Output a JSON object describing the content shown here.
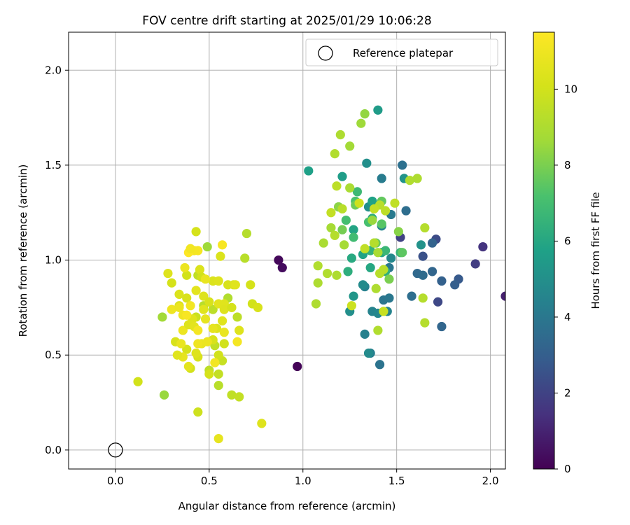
{
  "chart_data": {
    "type": "scatter",
    "title": "FOV centre drift starting at 2025/01/29 10:06:28",
    "xlabel": "Angular distance from reference (arcmin)",
    "ylabel": "Rotation from reference (arcmin)",
    "xlim": [
      -0.25,
      2.08
    ],
    "ylim": [
      -0.1,
      2.2
    ],
    "xticks": [
      0.0,
      0.5,
      1.0,
      1.5,
      2.0
    ],
    "xtick_labels": [
      "0.0",
      "0.5",
      "1.0",
      "1.5",
      "2.0"
    ],
    "yticks": [
      0.0,
      0.5,
      1.0,
      1.5,
      2.0
    ],
    "ytick_labels": [
      "0.0",
      "0.5",
      "1.0",
      "1.5",
      "2.0"
    ],
    "grid": true,
    "colormap": "viridis",
    "colorbar": {
      "label": "Hours from first FF file",
      "range": [
        0,
        11.5
      ],
      "ticks": [
        0,
        2,
        4,
        6,
        8,
        10
      ],
      "tick_labels": [
        "0",
        "2",
        "4",
        "6",
        "8",
        "10"
      ]
    },
    "legend": {
      "position": "top-right",
      "entries": [
        "Reference platepar"
      ]
    },
    "reference_point": {
      "x": 0.0,
      "y": 0.0
    },
    "points": [
      [
        0.97,
        0.44,
        0.1
      ],
      [
        0.87,
        1.0,
        0.2
      ],
      [
        0.89,
        0.96,
        0.3
      ],
      [
        2.08,
        0.81,
        0.9
      ],
      [
        1.96,
        1.07,
        1.5
      ],
      [
        1.92,
        0.98,
        1.8
      ],
      [
        1.52,
        1.12,
        2.0
      ],
      [
        1.72,
        0.78,
        2.2
      ],
      [
        1.71,
        1.11,
        2.3
      ],
      [
        1.64,
        1.02,
        2.5
      ],
      [
        1.83,
        0.9,
        2.8
      ],
      [
        1.81,
        0.87,
        3.0
      ],
      [
        1.74,
        0.89,
        3.1
      ],
      [
        1.69,
        1.09,
        3.2
      ],
      [
        1.69,
        0.94,
        3.3
      ],
      [
        1.74,
        0.65,
        3.3
      ],
      [
        1.61,
        0.93,
        3.4
      ],
      [
        1.64,
        0.92,
        3.5
      ],
      [
        1.58,
        0.81,
        3.6
      ],
      [
        1.55,
        1.26,
        3.6
      ],
      [
        1.53,
        1.5,
        3.7
      ],
      [
        1.41,
        0.45,
        3.8
      ],
      [
        1.43,
        0.79,
        3.9
      ],
      [
        1.46,
        0.8,
        4.0
      ],
      [
        1.46,
        0.96,
        4.0
      ],
      [
        1.47,
        1.24,
        4.1
      ],
      [
        1.42,
        1.43,
        4.2
      ],
      [
        1.36,
        0.51,
        4.3
      ],
      [
        1.33,
        0.61,
        4.4
      ],
      [
        1.33,
        0.86,
        4.4
      ],
      [
        1.37,
        0.73,
        4.5
      ],
      [
        1.45,
        0.73,
        4.5
      ],
      [
        1.4,
        0.72,
        4.6
      ],
      [
        1.42,
        1.18,
        4.6
      ],
      [
        1.47,
        1.01,
        4.7
      ],
      [
        1.32,
        0.87,
        4.8
      ],
      [
        1.35,
        0.51,
        4.8
      ],
      [
        1.25,
        0.73,
        5.0
      ],
      [
        1.35,
        1.28,
        5.0
      ],
      [
        1.34,
        1.51,
        5.0
      ],
      [
        1.63,
        1.08,
        5.1
      ],
      [
        1.54,
        1.43,
        5.2
      ],
      [
        1.27,
        0.81,
        5.3
      ],
      [
        1.4,
        1.79,
        5.5
      ],
      [
        1.21,
        1.44,
        5.6
      ],
      [
        1.03,
        1.47,
        5.7
      ],
      [
        1.37,
        1.31,
        5.8
      ],
      [
        1.32,
        1.03,
        5.8
      ],
      [
        1.27,
        1.16,
        5.9
      ],
      [
        1.42,
        1.04,
        6.0
      ],
      [
        1.36,
        0.96,
        6.0
      ],
      [
        1.26,
        1.01,
        6.1
      ],
      [
        1.37,
        1.22,
        6.2
      ],
      [
        1.44,
        0.94,
        6.3
      ],
      [
        1.24,
        0.94,
        6.3
      ],
      [
        1.36,
        1.05,
        6.5
      ],
      [
        1.52,
        1.04,
        6.6
      ],
      [
        1.44,
        1.05,
        6.7
      ],
      [
        1.29,
        1.36,
        6.8
      ],
      [
        1.27,
        1.12,
        6.9
      ],
      [
        1.23,
        1.21,
        7.0
      ],
      [
        1.35,
        1.2,
        7.1
      ],
      [
        1.28,
        1.31,
        7.2
      ],
      [
        1.19,
        1.28,
        7.3
      ],
      [
        1.42,
        1.19,
        7.4
      ],
      [
        1.53,
        1.04,
        7.5
      ],
      [
        1.42,
        1.31,
        7.6
      ],
      [
        1.39,
        1.09,
        7.7
      ],
      [
        1.28,
        1.29,
        7.8
      ],
      [
        1.21,
        1.16,
        7.9
      ],
      [
        1.46,
        0.9,
        8.0
      ],
      [
        1.38,
        1.09,
        8.1
      ],
      [
        1.51,
        1.15,
        8.2
      ],
      [
        1.19,
        1.28,
        8.3
      ],
      [
        1.33,
        1.77,
        8.4
      ],
      [
        1.37,
        1.21,
        8.5
      ],
      [
        1.31,
        1.72,
        8.6
      ],
      [
        1.25,
        1.6,
        8.7
      ],
      [
        1.15,
        1.17,
        8.8
      ],
      [
        1.11,
        1.09,
        8.9
      ],
      [
        1.18,
        0.92,
        9.0
      ],
      [
        1.25,
        1.38,
        8.9
      ],
      [
        1.2,
        1.66,
        9.0
      ],
      [
        1.22,
        1.08,
        8.8
      ],
      [
        1.17,
        1.56,
        9.1
      ],
      [
        1.39,
        0.85,
        9.0
      ],
      [
        1.4,
        0.63,
        9.1
      ],
      [
        1.65,
        0.67,
        9.2
      ],
      [
        1.64,
        0.8,
        9.2
      ],
      [
        1.57,
        1.42,
        9.1
      ],
      [
        1.61,
        1.43,
        9.0
      ],
      [
        1.41,
        1.29,
        9.3
      ],
      [
        1.44,
        1.26,
        9.4
      ],
      [
        1.49,
        1.3,
        9.5
      ],
      [
        1.38,
        1.27,
        9.6
      ],
      [
        1.41,
        0.93,
        9.3
      ],
      [
        1.43,
        0.73,
        9.7
      ],
      [
        1.26,
        0.76,
        9.8
      ],
      [
        1.15,
        1.25,
        9.6
      ],
      [
        1.3,
        1.3,
        9.9
      ],
      [
        1.33,
        1.06,
        9.5
      ],
      [
        1.18,
        1.39,
        9.4
      ],
      [
        1.21,
        1.27,
        9.3
      ],
      [
        1.17,
        1.13,
        9.2
      ],
      [
        1.13,
        0.93,
        9.1
      ],
      [
        1.08,
        0.88,
        9.0
      ],
      [
        1.08,
        0.97,
        9.1
      ],
      [
        1.07,
        0.77,
        9.0
      ],
      [
        1.4,
        1.04,
        8.9
      ],
      [
        1.38,
        1.09,
        9.2
      ],
      [
        1.43,
        0.95,
        9.3
      ],
      [
        1.65,
        1.17,
        9.2
      ],
      [
        0.26,
        0.29,
        8.5
      ],
      [
        0.25,
        0.7,
        8.7
      ],
      [
        0.49,
        1.07,
        8.6
      ],
      [
        0.47,
        0.76,
        9.3
      ],
      [
        0.52,
        0.74,
        9.4
      ],
      [
        0.44,
        0.92,
        9.5
      ],
      [
        0.7,
        1.14,
        9.2
      ],
      [
        0.69,
        1.01,
        9.3
      ],
      [
        0.65,
        0.7,
        9.4
      ],
      [
        0.6,
        0.8,
        9.1
      ],
      [
        0.62,
        0.29,
        9.5
      ],
      [
        0.66,
        0.28,
        9.6
      ],
      [
        0.55,
        0.34,
        9.3
      ],
      [
        0.5,
        0.42,
        9.4
      ],
      [
        0.53,
        0.55,
        9.5
      ],
      [
        0.55,
        0.4,
        9.6
      ],
      [
        0.57,
        0.47,
        9.7
      ],
      [
        0.43,
        0.7,
        9.8
      ],
      [
        0.44,
        0.2,
        9.9
      ],
      [
        0.4,
        0.43,
        10.0
      ],
      [
        0.38,
        0.53,
        10.1
      ],
      [
        0.32,
        0.57,
        10.2
      ],
      [
        0.34,
        0.76,
        10.3
      ],
      [
        0.3,
        0.88,
        10.1
      ],
      [
        0.28,
        0.93,
        10.4
      ],
      [
        0.34,
        0.82,
        10.3
      ],
      [
        0.38,
        0.8,
        10.2
      ],
      [
        0.38,
        0.92,
        10.0
      ],
      [
        0.43,
        1.15,
        10.1
      ],
      [
        0.45,
        0.95,
        10.3
      ],
      [
        0.46,
        0.91,
        10.0
      ],
      [
        0.47,
        0.81,
        10.4
      ],
      [
        0.47,
        0.74,
        10.5
      ],
      [
        0.5,
        0.78,
        10.2
      ],
      [
        0.52,
        0.89,
        10.3
      ],
      [
        0.55,
        0.89,
        10.4
      ],
      [
        0.55,
        0.77,
        10.6
      ],
      [
        0.58,
        0.77,
        10.5
      ],
      [
        0.58,
        0.74,
        10.4
      ],
      [
        0.6,
        0.87,
        10.2
      ],
      [
        0.63,
        0.87,
        10.3
      ],
      [
        0.64,
        0.87,
        10.5
      ],
      [
        0.62,
        0.75,
        10.1
      ],
      [
        0.66,
        0.63,
        10.4
      ],
      [
        0.58,
        0.56,
        10.0
      ],
      [
        0.52,
        0.58,
        10.2
      ],
      [
        0.54,
        0.64,
        10.3
      ],
      [
        0.55,
        0.5,
        10.0
      ],
      [
        0.5,
        0.4,
        10.1
      ],
      [
        0.44,
        0.49,
        10.2
      ],
      [
        0.43,
        0.51,
        10.4
      ],
      [
        0.39,
        0.44,
        10.6
      ],
      [
        0.36,
        0.49,
        10.7
      ],
      [
        0.35,
        0.56,
        10.8
      ],
      [
        0.36,
        0.63,
        10.9
      ],
      [
        0.36,
        0.71,
        11.0
      ],
      [
        0.4,
        0.76,
        11.1
      ],
      [
        0.3,
        0.74,
        11.0
      ],
      [
        0.39,
        0.66,
        10.4
      ],
      [
        0.41,
        0.69,
        10.5
      ],
      [
        0.42,
        0.65,
        10.6
      ],
      [
        0.46,
        0.56,
        10.8
      ],
      [
        0.44,
        0.56,
        11.0
      ],
      [
        0.44,
        0.63,
        11.2
      ],
      [
        0.49,
        0.57,
        10.9
      ],
      [
        0.52,
        0.64,
        10.7
      ],
      [
        0.53,
        0.46,
        11.1
      ],
      [
        0.58,
        0.62,
        10.8
      ],
      [
        0.57,
        0.68,
        10.5
      ],
      [
        0.56,
        1.02,
        10.3
      ],
      [
        0.57,
        1.08,
        11.3
      ],
      [
        0.65,
        0.57,
        11.2
      ],
      [
        0.72,
        0.87,
        10.1
      ],
      [
        0.73,
        0.77,
        10.0
      ],
      [
        0.76,
        0.75,
        10.2
      ],
      [
        0.78,
        0.14,
        10.4
      ],
      [
        0.55,
        0.06,
        10.7
      ],
      [
        0.12,
        0.36,
        10.0
      ],
      [
        0.41,
        1.05,
        11.4
      ],
      [
        0.44,
        1.05,
        11.3
      ],
      [
        0.42,
        1.05,
        11.2
      ],
      [
        0.39,
        1.04,
        11.5
      ],
      [
        0.4,
        1.06,
        11.1
      ],
      [
        0.37,
        0.96,
        10.9
      ],
      [
        0.33,
        0.5,
        10.5
      ],
      [
        0.34,
        0.75,
        10.9
      ],
      [
        0.38,
        0.71,
        11.3
      ],
      [
        0.43,
        0.84,
        10.6
      ],
      [
        0.48,
        0.69,
        10.7
      ],
      [
        0.48,
        0.9,
        10.8
      ]
    ]
  }
}
